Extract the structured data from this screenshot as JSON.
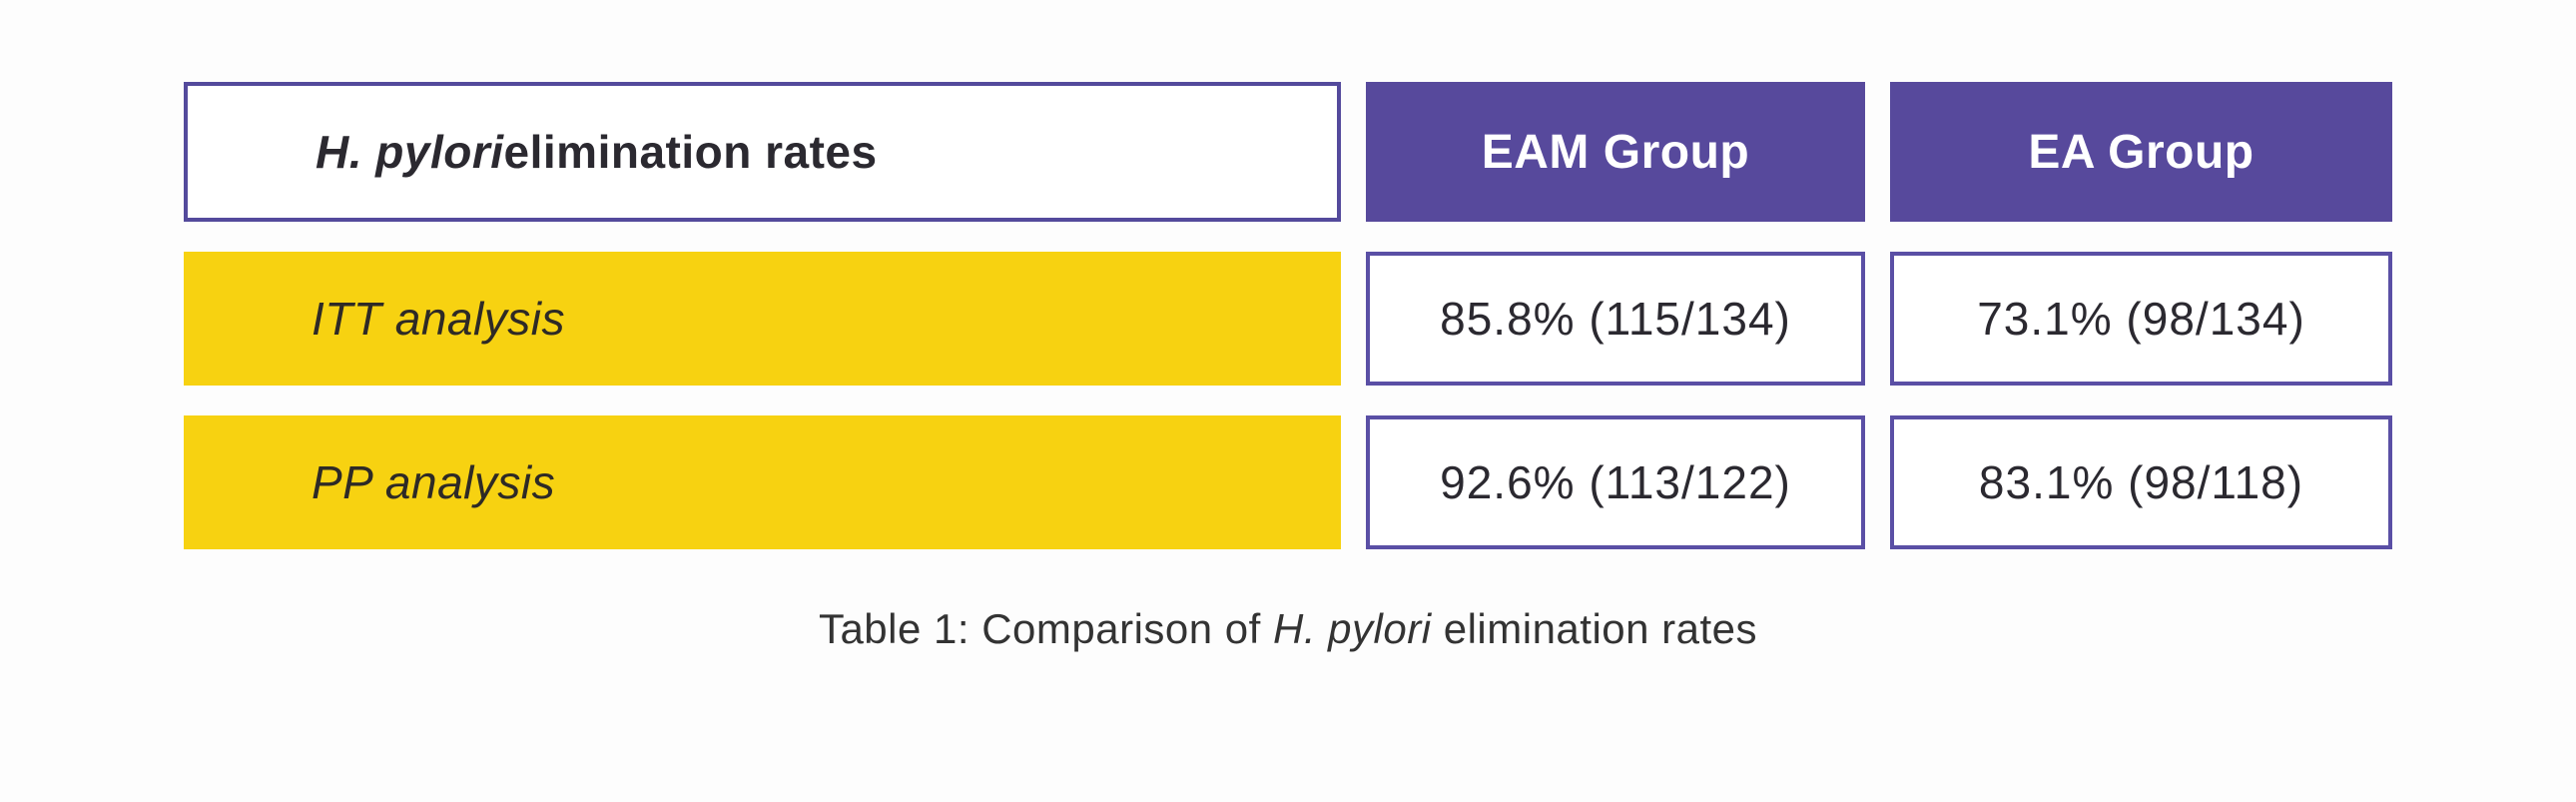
{
  "colors": {
    "purple_fill": "#57499c",
    "purple_border": "#5a4fa5",
    "yellow_fill": "#f7d211",
    "dark_text": "#2b2930",
    "header_text": "#ffffff",
    "page_background": "#fdfdfd"
  },
  "table": {
    "header_label": {
      "italic": "H. pylori",
      "rest": " elimination rates"
    },
    "group_headers": [
      "EAM Group",
      "EA Group"
    ],
    "rows": [
      {
        "label": "ITT analysis",
        "values": [
          "85.8% (115/134)",
          "73.1% (98/134)"
        ]
      },
      {
        "label": "PP analysis",
        "values": [
          "92.6% (113/122)",
          "83.1% (98/118)"
        ]
      }
    ]
  },
  "caption": {
    "prefix": "Table 1: Comparison of ",
    "italic": "H. pylori",
    "suffix": " elimination rates"
  },
  "chart_data": {
    "type": "table",
    "title": "Table 1: Comparison of H. pylori elimination rates",
    "columns": [
      "H. pylori elimination rates",
      "EAM Group",
      "EA Group"
    ],
    "categories": [
      "ITT analysis",
      "PP analysis"
    ],
    "rows": [
      [
        "ITT analysis",
        "85.8% (115/134)",
        "73.1% (98/134)"
      ],
      [
        "PP analysis",
        "92.6% (113/122)",
        "83.1% (98/118)"
      ]
    ],
    "series": [
      {
        "name": "EAM Group",
        "values": [
          85.8,
          92.6
        ],
        "fractions": [
          "115/134",
          "113/122"
        ]
      },
      {
        "name": "EA Group",
        "values": [
          73.1,
          83.1
        ],
        "fractions": [
          "98/134",
          "98/118"
        ]
      }
    ]
  }
}
